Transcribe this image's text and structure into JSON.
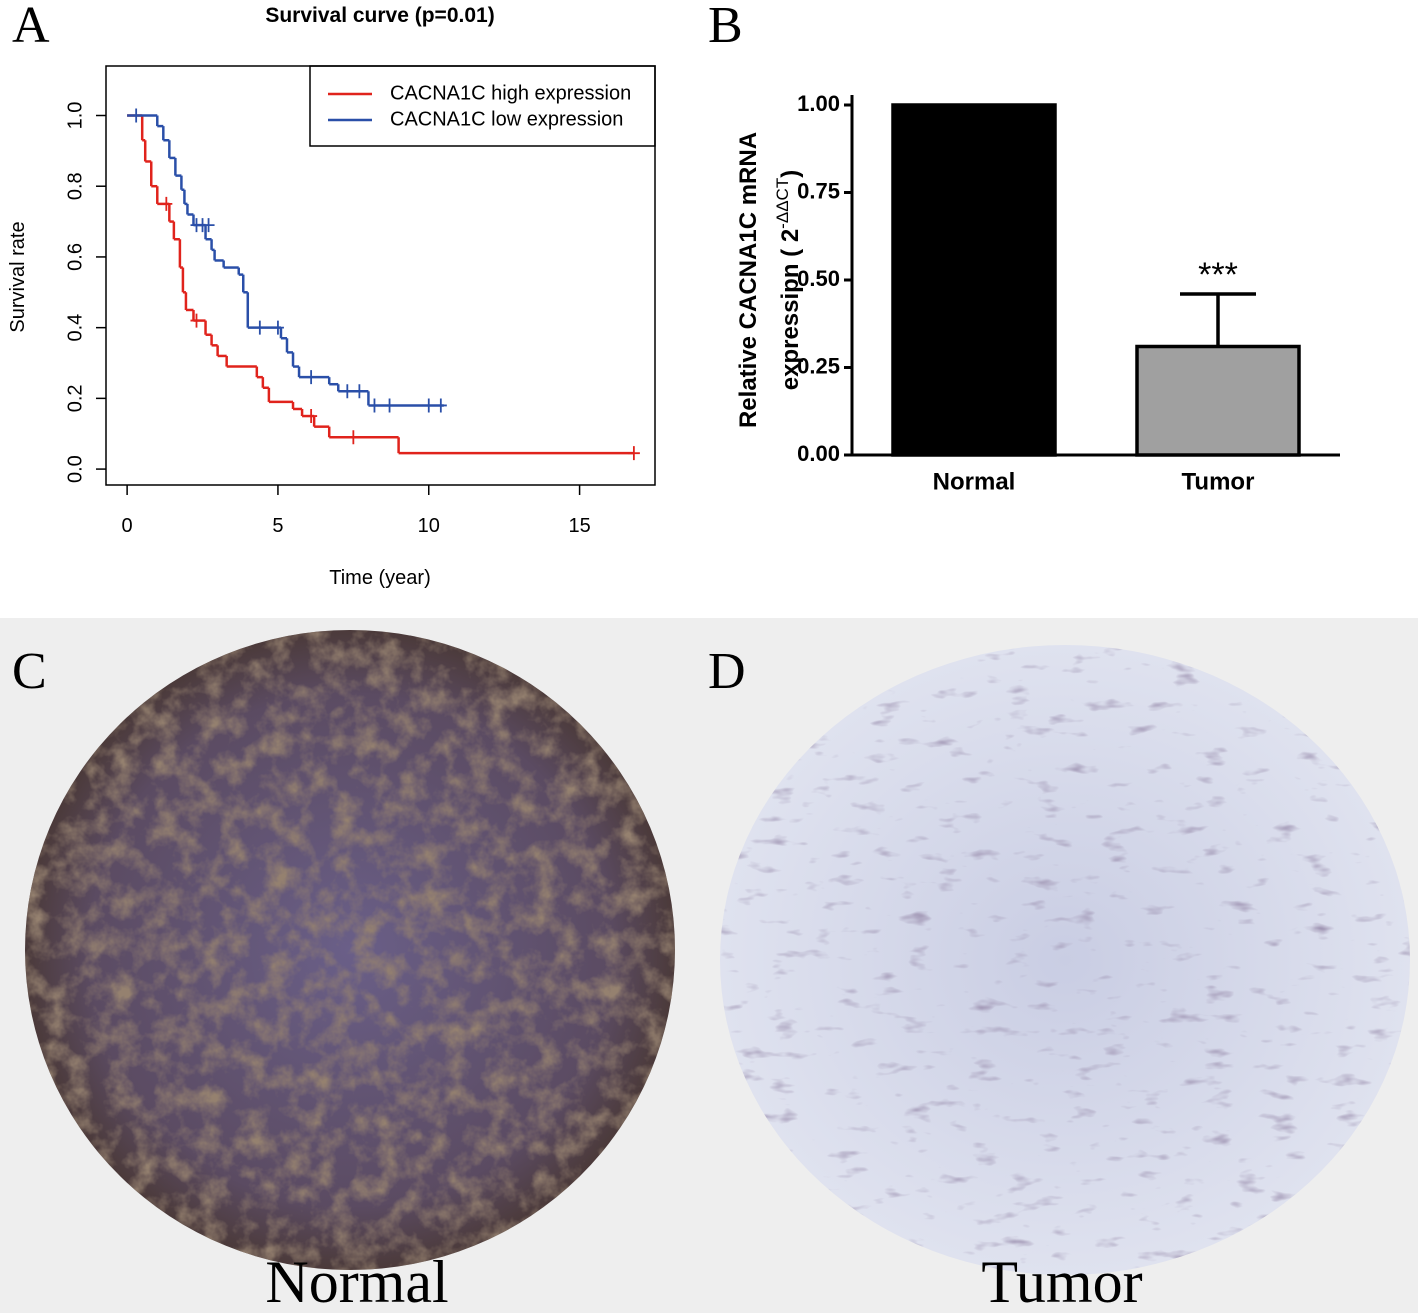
{
  "panel_labels": [
    "A",
    "B",
    "C",
    "D"
  ],
  "chart_data": [
    {
      "type": "step",
      "title": "Survival curve (p=0.01)",
      "xlabel": "Time (year)",
      "ylabel": "Survival rate",
      "xlim": [
        -0.7,
        17.5
      ],
      "ylim": [
        -0.045,
        1.14
      ],
      "xticks": [
        0,
        5,
        10,
        15
      ],
      "yticks": [
        {
          "value": 0,
          "label": "0.0"
        },
        {
          "value": 0.2,
          "label": "0.2"
        },
        {
          "value": 0.4,
          "label": "0.4"
        },
        {
          "value": 0.6,
          "label": "0.6"
        },
        {
          "value": 0.8,
          "label": "0.8"
        },
        {
          "value": 1,
          "label": "1.0"
        }
      ],
      "legend": "top-right",
      "series": [
        {
          "name": "CACNA1C high expression",
          "color": "#e0231c",
          "x": [
            0,
            0.5,
            0.6,
            0.8,
            1.0,
            1.4,
            1.55,
            1.75,
            1.85,
            1.95,
            2.2,
            2.6,
            2.8,
            3.0,
            3.3,
            4.3,
            4.5,
            4.7,
            5.5,
            5.8,
            6.2,
            6.7,
            9.0
          ],
          "values": [
            1.0,
            0.93,
            0.87,
            0.8,
            0.75,
            0.7,
            0.65,
            0.57,
            0.5,
            0.45,
            0.42,
            0.38,
            0.35,
            0.32,
            0.29,
            0.26,
            0.23,
            0.19,
            0.17,
            0.15,
            0.12,
            0.09,
            0.045
          ],
          "x_end": 16.8,
          "censored_x": [
            1.3,
            2.3,
            6.1,
            7.5,
            16.8
          ],
          "censored_y": [
            0.75,
            0.42,
            0.15,
            0.09,
            0.045
          ]
        },
        {
          "name": "CACNA1C low expression",
          "color": "#2a4fa8",
          "x": [
            0,
            1.0,
            1.2,
            1.4,
            1.6,
            1.8,
            1.9,
            2.0,
            2.2,
            2.6,
            2.8,
            2.9,
            3.2,
            3.7,
            3.85,
            4.0,
            5.1,
            5.3,
            5.5,
            5.7,
            6.7,
            7.0,
            8.0
          ],
          "values": [
            1.0,
            0.97,
            0.93,
            0.88,
            0.83,
            0.79,
            0.75,
            0.72,
            0.69,
            0.65,
            0.62,
            0.59,
            0.57,
            0.55,
            0.5,
            0.4,
            0.37,
            0.33,
            0.29,
            0.26,
            0.24,
            0.22,
            0.18
          ],
          "x_end": 10.5,
          "censored_x": [
            0.3,
            2.3,
            2.5,
            2.7,
            4.4,
            5.0,
            6.1,
            7.3,
            7.7,
            8.2,
            8.7,
            10.0,
            10.4
          ],
          "censored_y": [
            1.0,
            0.69,
            0.69,
            0.69,
            0.4,
            0.4,
            0.26,
            0.22,
            0.22,
            0.18,
            0.18,
            0.18,
            0.18
          ]
        }
      ]
    },
    {
      "type": "bar",
      "ylabel": {
        "line1": "Relative CACNA1C mRNA",
        "line2": "expressipn ( 2",
        "sup": "-ΔΔCT",
        "close": ")"
      },
      "categories": [
        "Normal",
        "Tumor"
      ],
      "values": [
        1.0,
        0.31
      ],
      "errors": [
        null,
        0.15
      ],
      "colors": [
        "#000000",
        "#a0a0a0"
      ],
      "annotation": "***",
      "ylim": [
        0,
        1.0
      ],
      "yticks": [
        {
          "value": 0,
          "label": "0.00"
        },
        {
          "value": 0.25,
          "label": "0.25"
        },
        {
          "value": 0.5,
          "label": "0.50"
        },
        {
          "value": 0.75,
          "label": "0.75"
        },
        {
          "value": 1,
          "label": "1.00"
        }
      ]
    }
  ],
  "images": [
    {
      "caption": "Normal"
    },
    {
      "caption": "Tumor"
    }
  ]
}
